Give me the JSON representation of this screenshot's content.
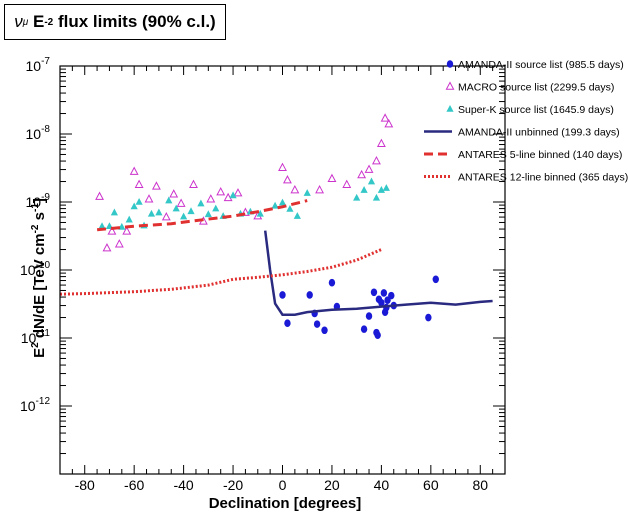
{
  "title": {
    "nu": "ν",
    "mu": "μ",
    "E": " E",
    "exp": "-2",
    "rest": " flux limits (90% c.l.)"
  },
  "chart_data": {
    "type": "scatter",
    "xlabel": "Declination [degrees]",
    "ylabel": {
      "parts": [
        "E",
        "2",
        " dN/dE [TeV cm",
        "-2",
        " s",
        "-1",
        "]"
      ]
    },
    "xlim": [
      -90,
      90
    ],
    "ylim": [
      1e-13,
      1e-07
    ],
    "yscale": "log",
    "xticks": [
      -80,
      -60,
      -40,
      -20,
      0,
      20,
      40,
      60,
      80
    ],
    "yticks": [
      {
        "value": 1e-07,
        "base": "10",
        "exp": "-7"
      },
      {
        "value": 1e-08,
        "base": "10",
        "exp": "-8"
      },
      {
        "value": 1e-09,
        "base": "10",
        "exp": "-9"
      },
      {
        "value": 1e-10,
        "base": "10",
        "exp": "-10"
      },
      {
        "value": 1e-11,
        "base": "10",
        "exp": "-11"
      },
      {
        "value": 1e-12,
        "base": "10",
        "exp": "-12"
      }
    ],
    "grid": false,
    "legend_position": "top-right",
    "series": [
      {
        "name": "AMANDA-II source list (985.5 days)",
        "kind": "points",
        "marker": "circle",
        "color": "#1a1ad6",
        "points": [
          [
            0,
            4.3e-11
          ],
          [
            2,
            1.65e-11
          ],
          [
            11,
            4.3e-11
          ],
          [
            13,
            2.3e-11
          ],
          [
            14,
            1.6e-11
          ],
          [
            17,
            1.3e-11
          ],
          [
            20,
            6.5e-11
          ],
          [
            22,
            2.9e-11
          ],
          [
            33,
            1.35e-11
          ],
          [
            35,
            2.1e-11
          ],
          [
            37,
            4.7e-11
          ],
          [
            38,
            1.2e-11
          ],
          [
            38.5,
            1.1e-11
          ],
          [
            39,
            3.7e-11
          ],
          [
            40,
            3.3e-11
          ],
          [
            41,
            4.6e-11
          ],
          [
            41.5,
            2.4e-11
          ],
          [
            42,
            2.8e-11
          ],
          [
            42.5,
            3.6e-11
          ],
          [
            44,
            4.2e-11
          ],
          [
            45,
            3e-11
          ],
          [
            59,
            2e-11
          ],
          [
            62,
            7.3e-11
          ]
        ]
      },
      {
        "name": "MACRO source list (2299.5 days)",
        "kind": "points",
        "marker": "triangle-open",
        "color": "#cc33cc",
        "points": [
          [
            -74,
            1.2e-09
          ],
          [
            -71,
            2.1e-10
          ],
          [
            -69,
            3.7e-10
          ],
          [
            -66,
            2.4e-10
          ],
          [
            -63,
            3.7e-10
          ],
          [
            -60,
            2.8e-09
          ],
          [
            -58,
            1.8e-09
          ],
          [
            -54,
            1.1e-09
          ],
          [
            -51,
            1.7e-09
          ],
          [
            -47,
            6e-10
          ],
          [
            -44,
            1.3e-09
          ],
          [
            -41,
            9.5e-10
          ],
          [
            -36,
            1.8e-09
          ],
          [
            -32,
            5.2e-10
          ],
          [
            -29,
            1.1e-09
          ],
          [
            -25,
            1.4e-09
          ],
          [
            -22,
            1.15e-09
          ],
          [
            -18,
            1.35e-09
          ],
          [
            -15,
            7e-10
          ],
          [
            -10,
            6.2e-10
          ],
          [
            0,
            3.2e-09
          ],
          [
            2,
            2.1e-09
          ],
          [
            5,
            1.5e-09
          ],
          [
            15,
            1.5e-09
          ],
          [
            20,
            2.2e-09
          ],
          [
            26,
            1.8e-09
          ],
          [
            32,
            2.5e-09
          ],
          [
            35,
            3e-09
          ],
          [
            38,
            4e-09
          ],
          [
            40,
            7.2e-09
          ],
          [
            41.5,
            1.7e-08
          ],
          [
            43,
            1.4e-08
          ]
        ]
      },
      {
        "name": "Super-K source list (1645.9 days)",
        "kind": "points",
        "marker": "triangle-filled",
        "color": "#33c7c7",
        "points": [
          [
            -73,
            4.4e-10
          ],
          [
            -70,
            4.4e-10
          ],
          [
            -68,
            7e-10
          ],
          [
            -65,
            4.3e-10
          ],
          [
            -62,
            5.5e-10
          ],
          [
            -60,
            8.6e-10
          ],
          [
            -58,
            1e-09
          ],
          [
            -56,
            4.5e-10
          ],
          [
            -53,
            6.7e-10
          ],
          [
            -50,
            7e-10
          ],
          [
            -46,
            1.05e-09
          ],
          [
            -43,
            8e-10
          ],
          [
            -40,
            6.1e-10
          ],
          [
            -37,
            7.3e-10
          ],
          [
            -33,
            9.5e-10
          ],
          [
            -30,
            6.6e-10
          ],
          [
            -27,
            8e-10
          ],
          [
            -24,
            6.2e-10
          ],
          [
            -20,
            1.25e-09
          ],
          [
            -17,
            6.7e-10
          ],
          [
            -13,
            7.2e-10
          ],
          [
            -9,
            6.7e-10
          ],
          [
            -3,
            8.8e-10
          ],
          [
            0,
            9.8e-10
          ],
          [
            3,
            7.9e-10
          ],
          [
            6,
            6.2e-10
          ],
          [
            10,
            1.35e-09
          ],
          [
            30,
            1.15e-09
          ],
          [
            33,
            1.5e-09
          ],
          [
            36,
            2e-09
          ],
          [
            38,
            1.15e-09
          ],
          [
            40,
            1.5e-09
          ],
          [
            42,
            1.6e-09
          ]
        ]
      },
      {
        "name": "AMANDA-II unbinned (199.3 days)",
        "kind": "line",
        "style": "solid",
        "color": "#2a2a80",
        "points": [
          [
            -7,
            3.8e-10
          ],
          [
            -5,
            1e-10
          ],
          [
            -3,
            3.2e-11
          ],
          [
            0,
            2.2e-11
          ],
          [
            5,
            2.2e-11
          ],
          [
            10,
            2.4e-11
          ],
          [
            20,
            2.6e-11
          ],
          [
            30,
            2.7e-11
          ],
          [
            40,
            2.9e-11
          ],
          [
            50,
            3.1e-11
          ],
          [
            60,
            3.3e-11
          ],
          [
            70,
            3.1e-11
          ],
          [
            80,
            3.4e-11
          ],
          [
            85,
            3.5e-11
          ]
        ]
      },
      {
        "name": "ANTARES 5-line binned (140 days)",
        "kind": "line",
        "style": "dashed",
        "color": "#e03030",
        "points": [
          [
            -75,
            3.9e-10
          ],
          [
            -60,
            4.4e-10
          ],
          [
            -45,
            4.8e-10
          ],
          [
            -30,
            5.6e-10
          ],
          [
            -20,
            6.2e-10
          ],
          [
            -10,
            7.2e-10
          ],
          [
            0,
            8.5e-10
          ],
          [
            10,
            1.05e-09
          ]
        ]
      },
      {
        "name": "ANTARES 12-line binned (365 days)",
        "kind": "line",
        "style": "dotted",
        "color": "#e03030",
        "points": [
          [
            -90,
            4.4e-11
          ],
          [
            -80,
            4.5e-11
          ],
          [
            -60,
            4.8e-11
          ],
          [
            -45,
            5.2e-11
          ],
          [
            -30,
            6e-11
          ],
          [
            -20,
            7.3e-11
          ],
          [
            -10,
            7.8e-11
          ],
          [
            0,
            8.5e-11
          ],
          [
            10,
            9.5e-11
          ],
          [
            20,
            1.1e-10
          ],
          [
            30,
            1.4e-10
          ],
          [
            40,
            2e-10
          ]
        ]
      }
    ]
  }
}
